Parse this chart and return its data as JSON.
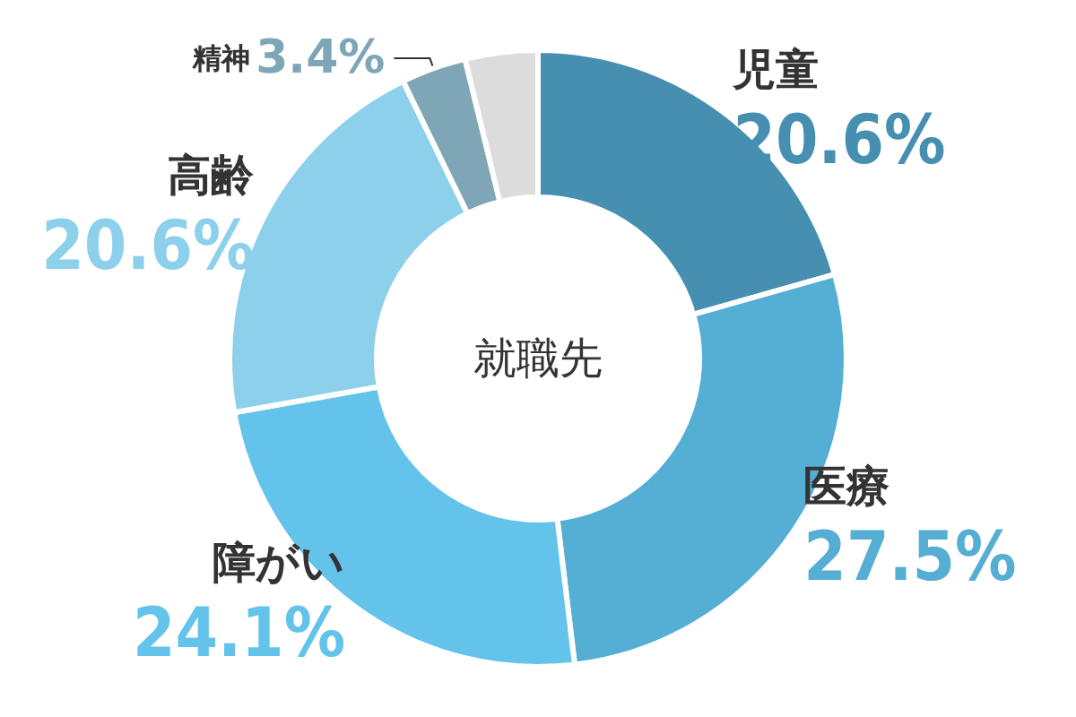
{
  "chart_data": {
    "type": "donut",
    "title": "就職先",
    "categories": [
      "児童",
      "医療",
      "障がい",
      "高齢",
      "精神",
      null
    ],
    "values": [
      20.6,
      27.5,
      24.1,
      20.6,
      3.4,
      3.8
    ],
    "colors": [
      "#468fb1",
      "#55aed3",
      "#63c3ea",
      "#8dd0ec",
      "#7fa6b6",
      "#dcdcdc"
    ],
    "value_labels": [
      "20.6%",
      "27.5%",
      "24.1%",
      "20.6%",
      "3.4%",
      null
    ],
    "legend": false
  }
}
